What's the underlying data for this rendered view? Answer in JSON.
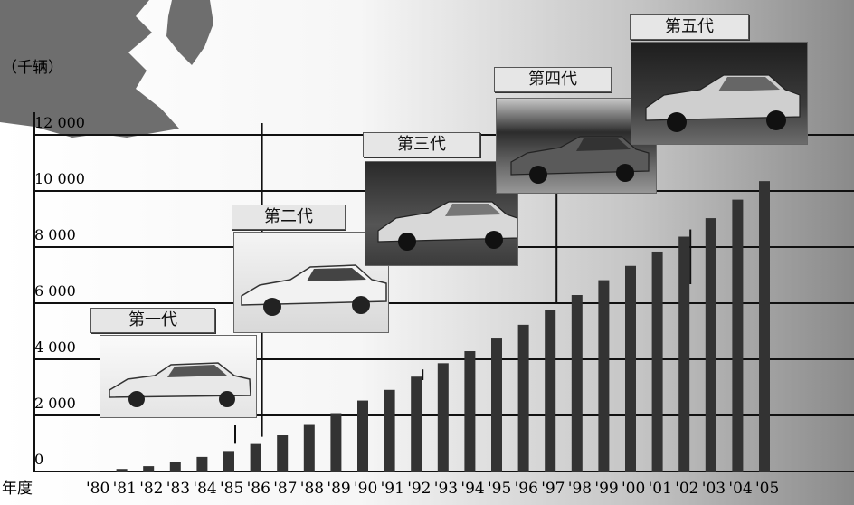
{
  "chart_data": {
    "type": "bar",
    "title": "",
    "ylabel": "（千辆）",
    "xlabel": "年度",
    "ylim": [
      0,
      13000
    ],
    "yticks": [
      0,
      2000,
      4000,
      6000,
      8000,
      10000,
      12000
    ],
    "ytick_labels": [
      "0",
      "2 000",
      "4 000",
      "6 000",
      "8 000",
      "10 000",
      "12 000"
    ],
    "categories": [
      "'80",
      "'81",
      "'82",
      "'83",
      "'84",
      "'85",
      "'86",
      "'87",
      "'88",
      "'89",
      "'90",
      "'91",
      "'92",
      "'93",
      "'94",
      "'95",
      "'96",
      "'97",
      "'98",
      "'99",
      "'00",
      "'01",
      "'02",
      "'03",
      "'04",
      "'05"
    ],
    "values": [
      30,
      90,
      190,
      330,
      520,
      730,
      980,
      1290,
      1660,
      2080,
      2530,
      2910,
      3380,
      3860,
      4290,
      4740,
      5230,
      5760,
      6290,
      6820,
      7330,
      7840,
      8370,
      9030,
      9690,
      10350
    ],
    "bar_color": "#333333",
    "grid": true,
    "generations": [
      {
        "label": "第一代",
        "category": "'85"
      },
      {
        "label": "第二代",
        "category": "'86"
      },
      {
        "label": "第三代",
        "category": "'92"
      },
      {
        "label": "第四代",
        "category": "'97"
      },
      {
        "label": "第五代",
        "category": "'02"
      }
    ]
  }
}
